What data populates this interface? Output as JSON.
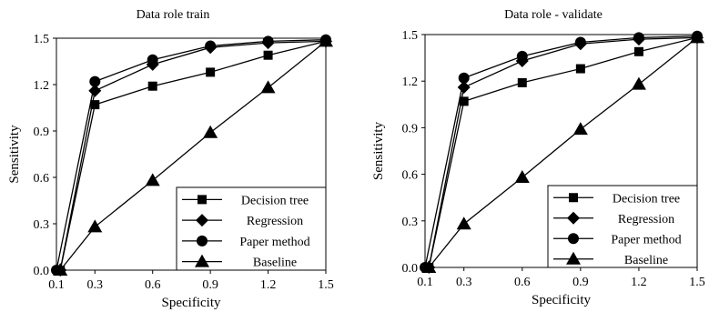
{
  "chart_data": [
    {
      "type": "line",
      "title": "Data role train",
      "xlabel": "Specificity",
      "ylabel": "Sensitivity",
      "xlim": [
        0.1,
        1.5
      ],
      "ylim": [
        0.0,
        1.5
      ],
      "xticks": [
        "0.1",
        "0.3",
        "0.6",
        "0.9",
        "1.2",
        "1.5"
      ],
      "yticks": [
        "0.0",
        "0.3",
        "0.6",
        "0.9",
        "1.2",
        "1.5"
      ],
      "grid": false,
      "legend_position": "bottom-right",
      "series": [
        {
          "name": "Decision tree",
          "marker": "square",
          "x": [
            0.12,
            0.3,
            0.6,
            0.9,
            1.2,
            1.5
          ],
          "y": [
            0.0,
            1.07,
            1.19,
            1.28,
            1.39,
            1.48
          ]
        },
        {
          "name": "Regression",
          "marker": "diamond",
          "x": [
            0.12,
            0.3,
            0.6,
            0.9,
            1.2,
            1.5
          ],
          "y": [
            0.0,
            1.16,
            1.33,
            1.44,
            1.47,
            1.48
          ]
        },
        {
          "name": "Paper method",
          "marker": "circle",
          "x": [
            0.1,
            0.3,
            0.6,
            0.9,
            1.2,
            1.5
          ],
          "y": [
            0.0,
            1.22,
            1.36,
            1.45,
            1.48,
            1.49
          ]
        },
        {
          "name": "Baseline",
          "marker": "triangle",
          "x": [
            0.12,
            0.3,
            0.6,
            0.9,
            1.2,
            1.5
          ],
          "y": [
            0.0,
            0.28,
            0.58,
            0.89,
            1.18,
            1.48
          ]
        }
      ]
    },
    {
      "type": "line",
      "title": "Data role - validate",
      "xlabel": "Specificity",
      "ylabel": "Sensitivity",
      "xlim": [
        0.1,
        1.5
      ],
      "ylim": [
        0.0,
        1.5
      ],
      "xticks": [
        "0.1",
        "0.3",
        "0.6",
        "0.9",
        "1.2",
        "1.5"
      ],
      "yticks": [
        "0.0",
        "0.3",
        "0.6",
        "0.9",
        "1.2",
        "1.5"
      ],
      "grid": false,
      "legend_position": "bottom-right",
      "series": [
        {
          "name": "Decision tree",
          "marker": "square",
          "x": [
            0.12,
            0.3,
            0.6,
            0.9,
            1.2,
            1.5
          ],
          "y": [
            0.0,
            1.07,
            1.19,
            1.28,
            1.39,
            1.48
          ]
        },
        {
          "name": "Regression",
          "marker": "diamond",
          "x": [
            0.12,
            0.3,
            0.6,
            0.9,
            1.2,
            1.5
          ],
          "y": [
            0.0,
            1.16,
            1.33,
            1.44,
            1.47,
            1.48
          ]
        },
        {
          "name": "Paper method",
          "marker": "circle",
          "x": [
            0.1,
            0.3,
            0.6,
            0.9,
            1.2,
            1.5
          ],
          "y": [
            0.0,
            1.22,
            1.36,
            1.45,
            1.48,
            1.49
          ]
        },
        {
          "name": "Baseline",
          "marker": "triangle",
          "x": [
            0.12,
            0.3,
            0.6,
            0.9,
            1.2,
            1.5
          ],
          "y": [
            0.0,
            0.28,
            0.58,
            0.89,
            1.18,
            1.48
          ]
        }
      ]
    }
  ]
}
